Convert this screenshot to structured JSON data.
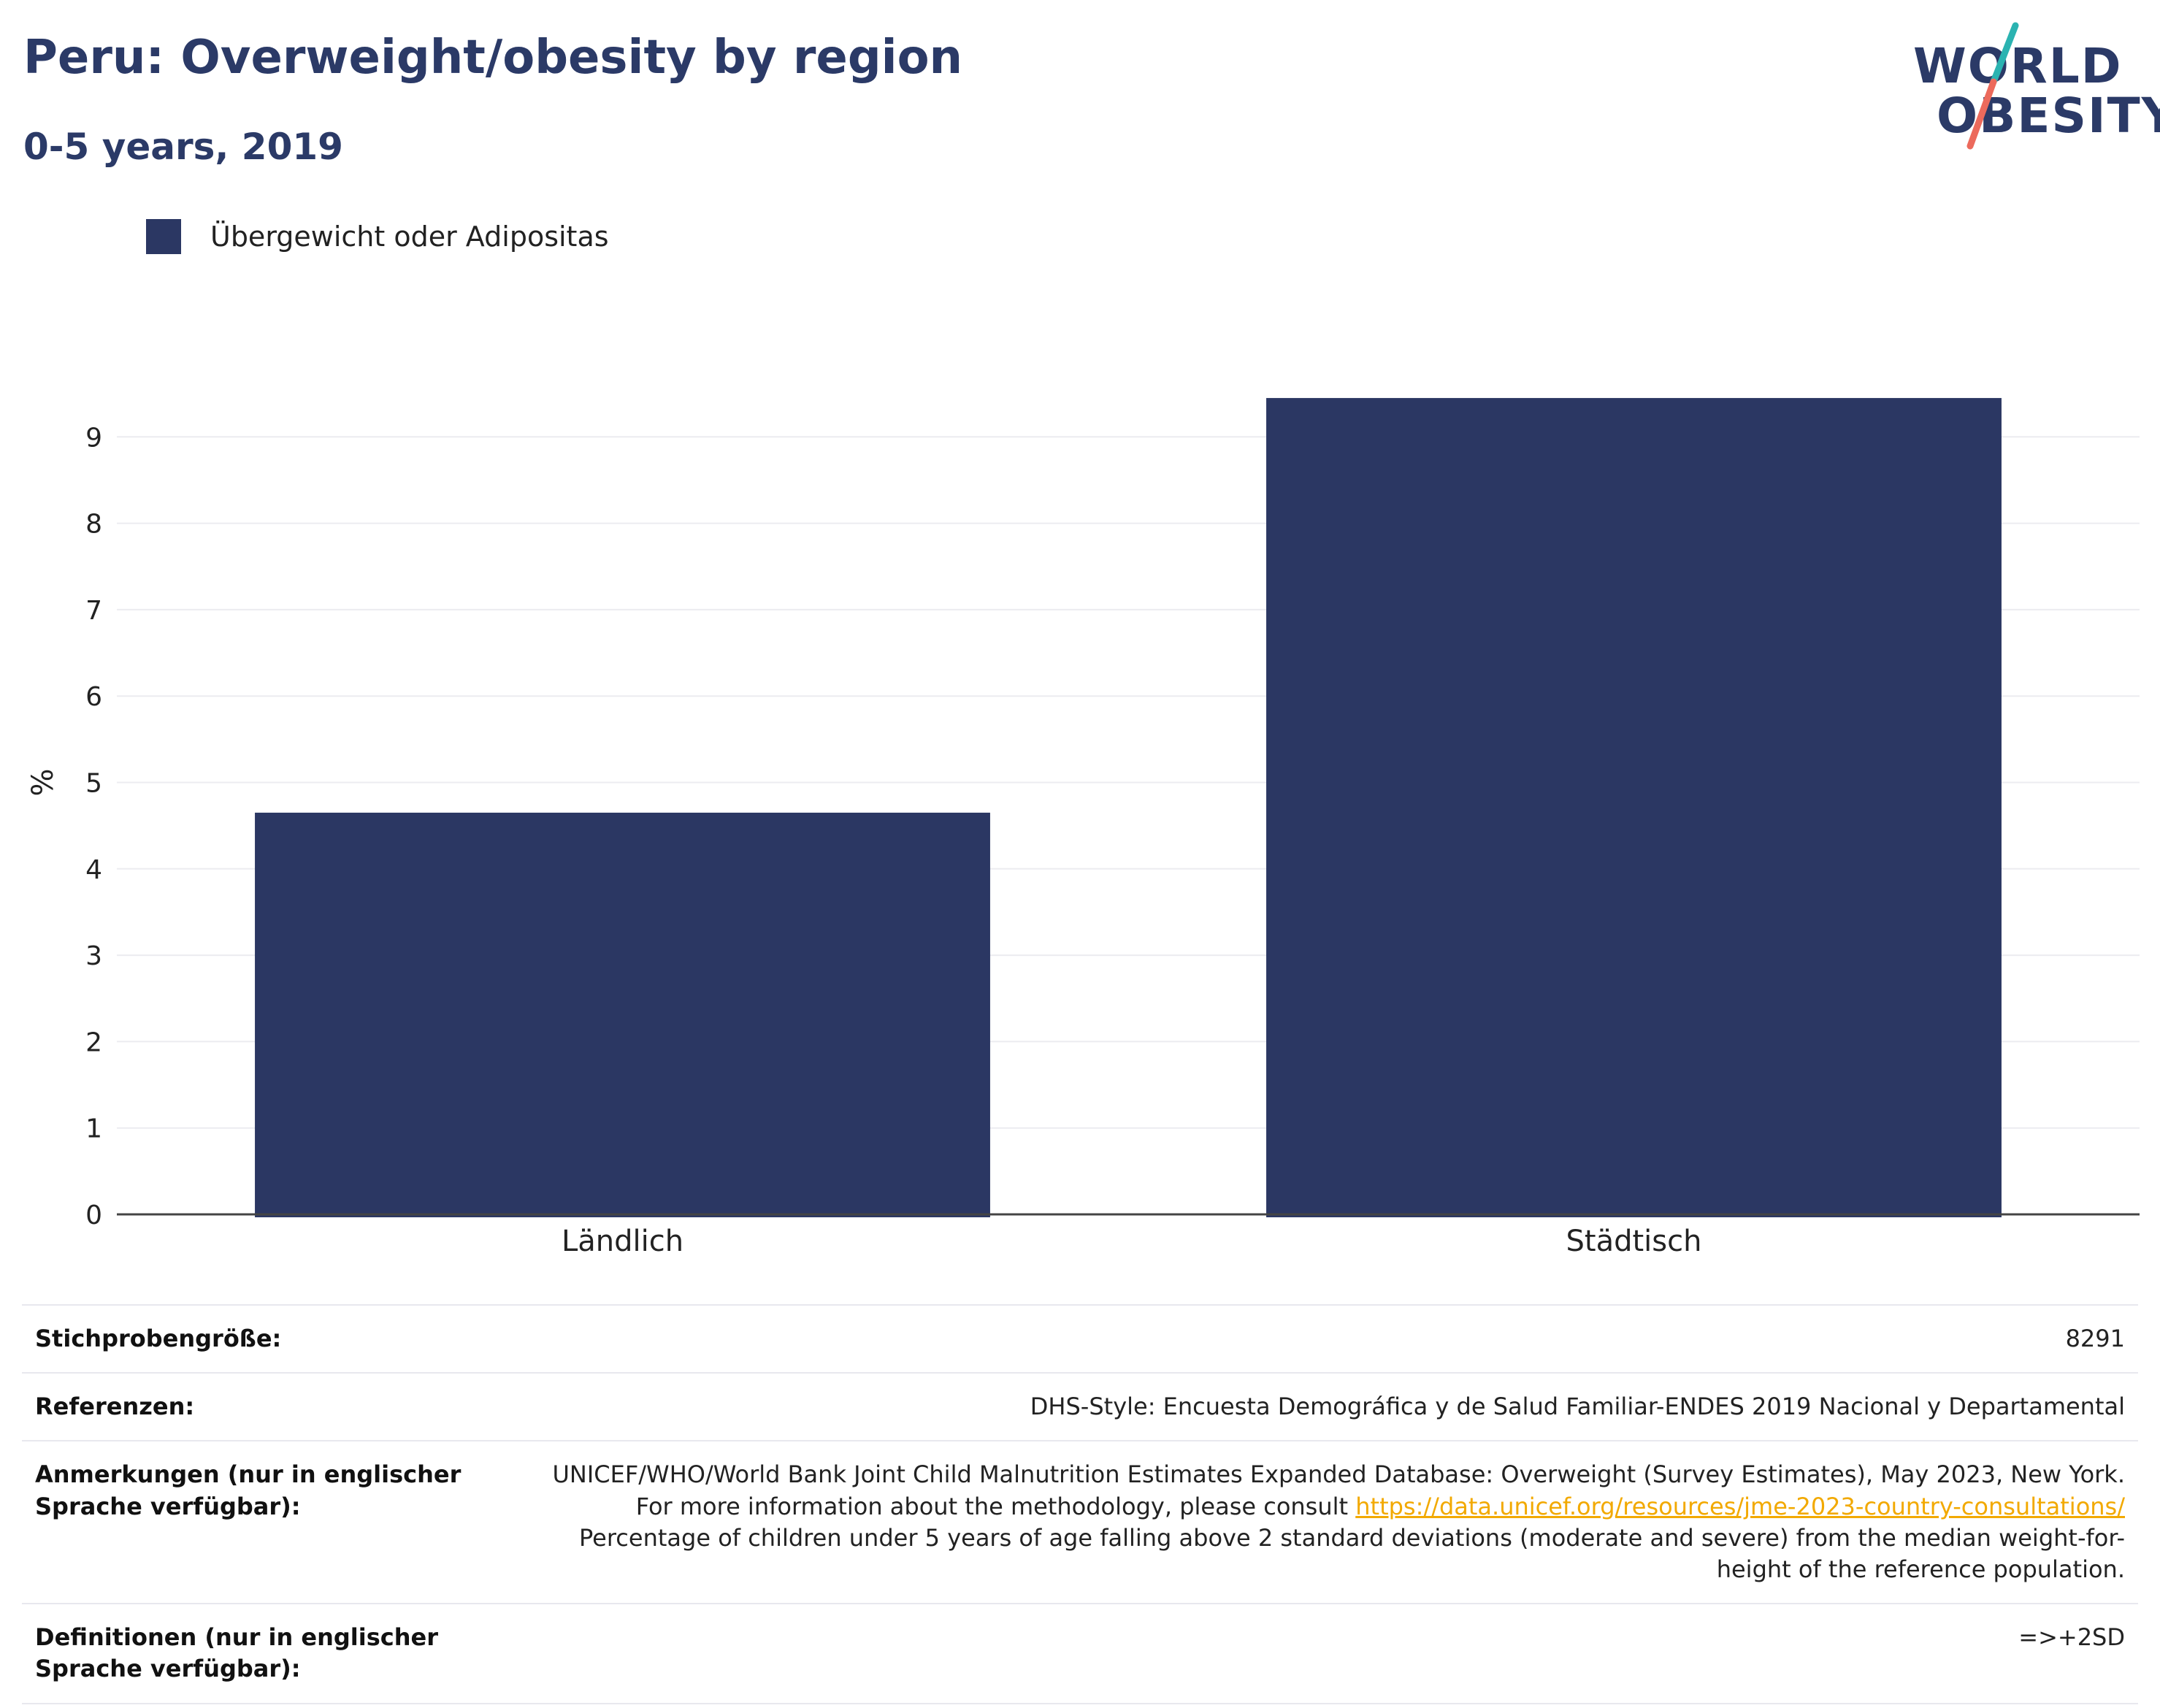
{
  "header": {
    "title": "Peru: Overweight/obesity by region",
    "subtitle": "0-5 years, 2019"
  },
  "logo": {
    "line1": "WORLD",
    "line2": "OBESITY",
    "accent_teal": "#2bb3b1",
    "accent_coral": "#ec6a5c"
  },
  "legend": {
    "label": "Übergewicht oder Adipositas",
    "color": "#2b3763"
  },
  "chart_data": {
    "type": "bar",
    "categories": [
      "Ländlich",
      "Städtisch"
    ],
    "series": [
      {
        "name": "Übergewicht oder Adipositas",
        "values": [
          4.65,
          9.45
        ],
        "color": "#2b3763"
      }
    ],
    "ylabel": "%",
    "xlabel": "",
    "ylim": [
      0,
      10
    ],
    "yticks": [
      0,
      1,
      2,
      3,
      4,
      5,
      6,
      7,
      8,
      9
    ],
    "grid": true
  },
  "info": {
    "rows": [
      {
        "key": "Stichprobengröße:",
        "value": "8291"
      },
      {
        "key": "Referenzen:",
        "value": "DHS-Style: Encuesta Demográfica y de Salud Familiar-ENDES 2019 Nacional y Departamental"
      },
      {
        "key": "Anmerkungen (nur in englischer Sprache verfügbar):",
        "value_pre": "UNICEF/WHO/World Bank Joint Child Malnutrition Estimates Expanded Database: Overweight (Survey Estimates), May 2023, New York. For more information about the methodology, please consult ",
        "link": "https://data.unicef.org/resources/jme-2023-country-consultations/",
        "value_post": " Percentage of children under 5 years of age falling above 2 standard deviations (moderate and severe) from the median weight-for-height of the reference population."
      },
      {
        "key": "Definitionen (nur in englischer Sprache verfügbar):",
        "value": "=>+2SD"
      }
    ]
  }
}
